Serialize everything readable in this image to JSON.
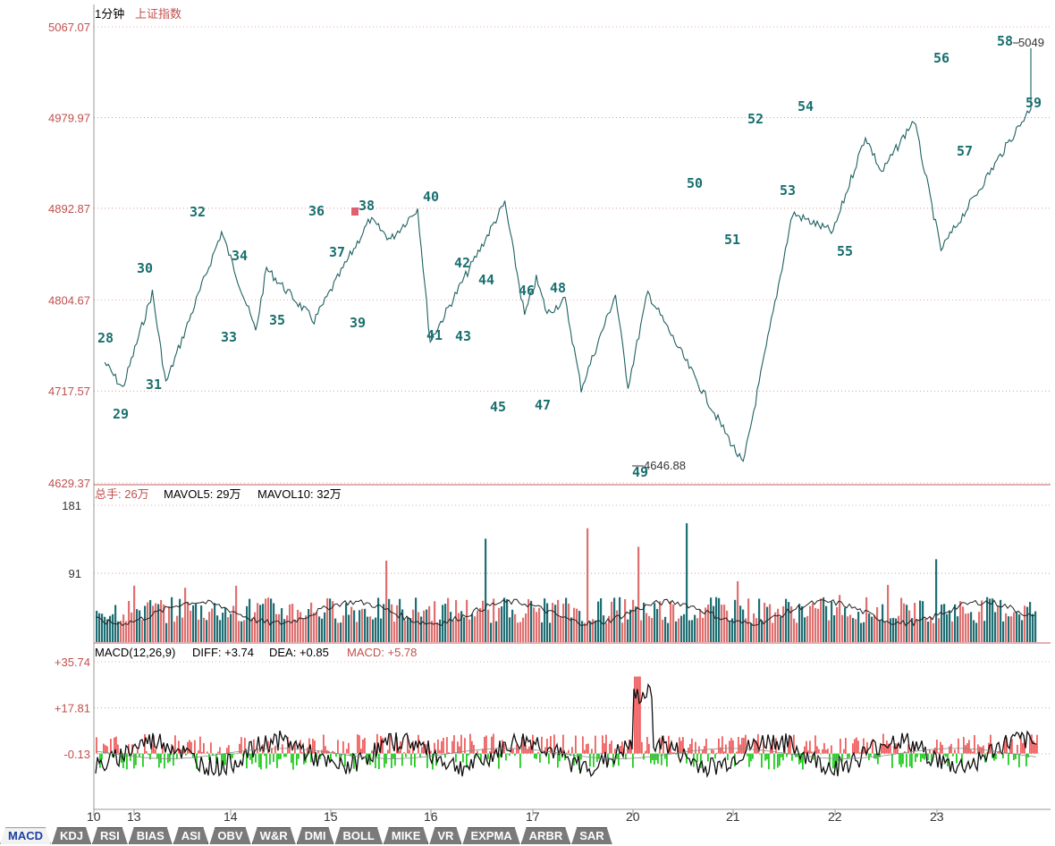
{
  "header": {
    "period": "1分钟",
    "index_name": "上证指数"
  },
  "volume_header": {
    "label": "总手:",
    "total": "26万",
    "mavol5": "MAVOL5: 29万",
    "mavol10": "MAVOL10: 32万"
  },
  "macd_header": {
    "params": "MACD(12,26,9)",
    "diff": "DIFF: +3.74",
    "dea": "DEA: +0.85",
    "macd": "MACD: +5.78"
  },
  "tabs": [
    "MACD",
    "KDJ",
    "RSI",
    "BIAS",
    "ASI",
    "OBV",
    "W&R",
    "DMI",
    "BOLL",
    "MIKE",
    "VR",
    "EXPMA",
    "ARBR",
    "SAR"
  ],
  "active_tab": "MACD",
  "colors": {
    "price": "#1f6060",
    "wave_label": "#1a6f6f",
    "axis_label": "#c0504d",
    "up_bar": "#e07070",
    "down_bar": "#1e6e73",
    "macd_up": "#f06060",
    "macd_down": "#22cc22",
    "grid": "#c46060"
  },
  "chart_data": [
    {
      "type": "line",
      "panel": "price",
      "title": "上证指数",
      "y_ticks": [
        "5067.07",
        "4979.97",
        "4892.87",
        "4804.67",
        "4717.57",
        "4629.37"
      ],
      "ylim": [
        4629.37,
        5067.07
      ],
      "x_ticks": [
        "10",
        "13",
        "14",
        "15",
        "16",
        "17",
        "20",
        "21",
        "22",
        "23"
      ],
      "annotations": {
        "high": "5049",
        "low": "4646.88"
      },
      "waves": [
        {
          "n": "28",
          "x": 0.01,
          "y": 4745
        },
        {
          "n": "29",
          "x": 0.03,
          "y": 4720
        },
        {
          "n": "30",
          "x": 0.063,
          "y": 4812
        },
        {
          "n": "31",
          "x": 0.078,
          "y": 4725
        },
        {
          "n": "32",
          "x": 0.14,
          "y": 4870
        },
        {
          "n": "33",
          "x": 0.178,
          "y": 4775
        },
        {
          "n": "34",
          "x": 0.19,
          "y": 4835
        },
        {
          "n": "35",
          "x": 0.243,
          "y": 4785
        },
        {
          "n": "36",
          "x": 0.305,
          "y": 4882
        },
        {
          "n": "37",
          "x": 0.328,
          "y": 4863
        },
        {
          "n": "38",
          "x": 0.358,
          "y": 4893
        },
        {
          "n": "39",
          "x": 0.372,
          "y": 4765
        },
        {
          "n": "40",
          "x": 0.455,
          "y": 4898
        },
        {
          "n": "41",
          "x": 0.477,
          "y": 4790
        },
        {
          "n": "42",
          "x": 0.49,
          "y": 4825
        },
        {
          "n": "43",
          "x": 0.502,
          "y": 4792
        },
        {
          "n": "44",
          "x": 0.522,
          "y": 4805
        },
        {
          "n": "45",
          "x": 0.54,
          "y": 4720
        },
        {
          "n": "46",
          "x": 0.578,
          "y": 4810
        },
        {
          "n": "47",
          "x": 0.592,
          "y": 4722
        },
        {
          "n": "48",
          "x": 0.614,
          "y": 4812
        },
        {
          "n": "49",
          "x": 0.72,
          "y": 4647
        },
        {
          "n": "50",
          "x": 0.775,
          "y": 4888
        },
        {
          "n": "51",
          "x": 0.82,
          "y": 4870
        },
        {
          "n": "52",
          "x": 0.856,
          "y": 4962
        },
        {
          "n": "53",
          "x": 0.874,
          "y": 4927
        },
        {
          "n": "54",
          "x": 0.91,
          "y": 4978
        },
        {
          "n": "55",
          "x": 0.94,
          "y": 4853
        },
        {
          "n": "56",
          "x": 1.08,
          "y": 5023
        },
        {
          "n": "57",
          "x": 1.06,
          "y": 4990
        },
        {
          "n": "58",
          "x": 1.13,
          "y": 5049
        },
        {
          "n": "59",
          "x": 1.15,
          "y": 5015
        }
      ]
    },
    {
      "type": "bar",
      "panel": "volume",
      "ylabel": "",
      "y_ticks": [
        "181",
        "91"
      ],
      "ylim": [
        0,
        181
      ]
    },
    {
      "type": "bar",
      "panel": "macd",
      "y_ticks": [
        "+35.74",
        "+17.81",
        "-0.13"
      ],
      "ylim": [
        -20,
        35.74
      ],
      "series": [
        {
          "name": "DIFF"
        },
        {
          "name": "DEA"
        },
        {
          "name": "MACD"
        }
      ]
    }
  ]
}
